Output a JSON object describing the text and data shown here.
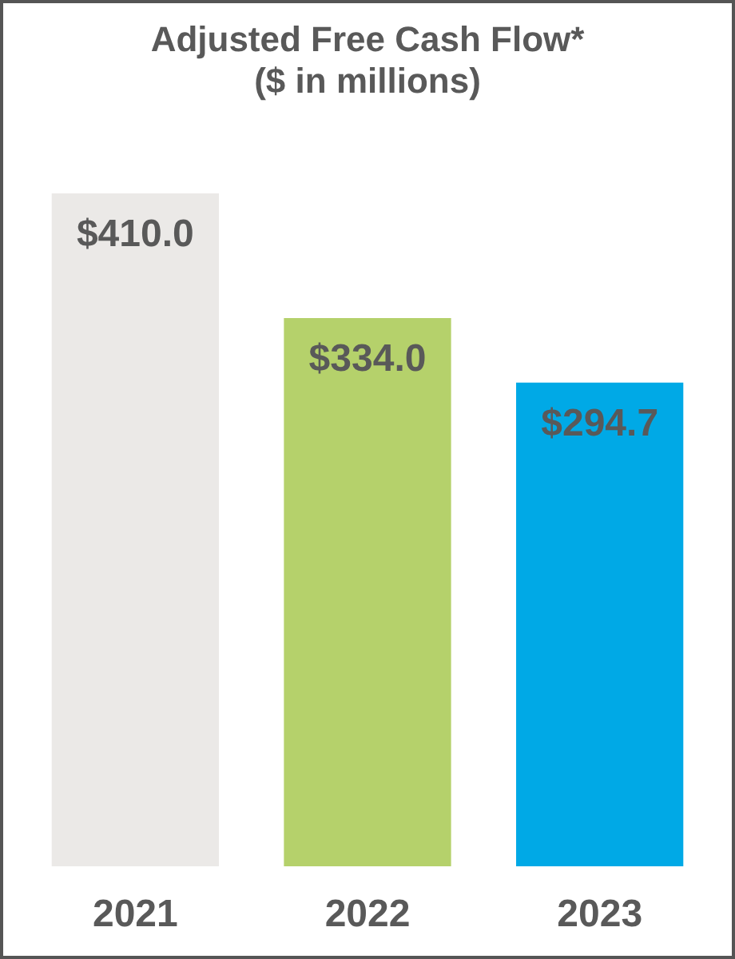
{
  "chart_data": {
    "type": "bar",
    "title": "Adjusted Free Cash Flow*",
    "subtitle": "($ in millions)",
    "categories": [
      "2021",
      "2022",
      "2023"
    ],
    "values": [
      410.0,
      334.0,
      294.7
    ],
    "colors": [
      "#ebe9e7",
      "#b5d16b",
      "#00a9e6"
    ],
    "value_labels": [
      "$410.0",
      "$334.0",
      "$294.7"
    ]
  }
}
